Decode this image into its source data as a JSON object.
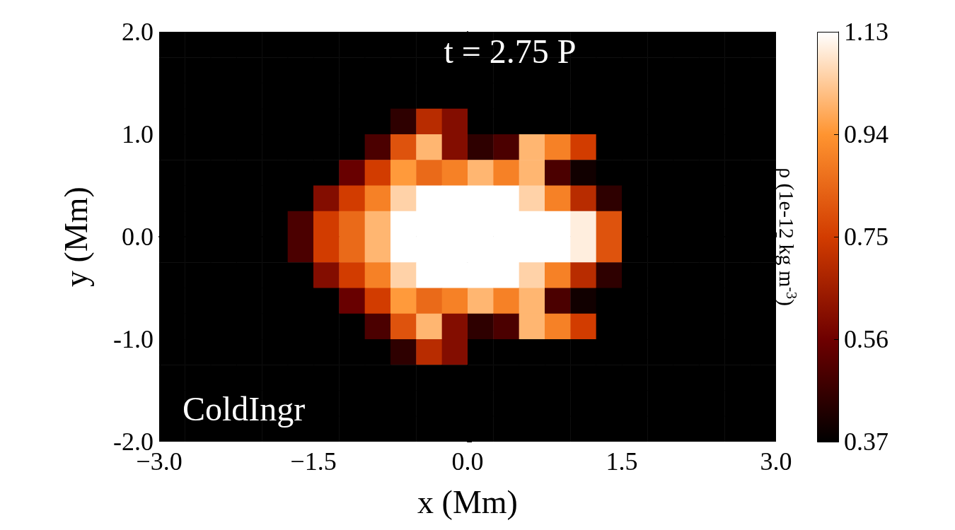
{
  "chart_data": {
    "type": "heatmap",
    "xlabel": "x (Mm)",
    "ylabel": "y (Mm)",
    "clabel": "ρ (1e-12 kg m$^{-3}$)",
    "annotations": [
      "t = 2.75 P",
      "ColdIngr"
    ],
    "x": [
      -2.875,
      -2.625,
      -2.375,
      -2.125,
      -1.875,
      -1.625,
      -1.375,
      -1.125,
      -0.875,
      -0.625,
      -0.375,
      -0.125,
      0.125,
      0.375,
      0.625,
      0.875,
      1.125,
      1.375,
      1.625,
      1.875,
      2.125,
      2.375,
      2.625,
      2.875
    ],
    "y": [
      1.875,
      1.625,
      1.375,
      1.125,
      0.875,
      0.625,
      0.375,
      0.125,
      -0.125,
      -0.375,
      -0.625,
      -0.875,
      -1.125,
      -1.375,
      -1.625,
      -1.875
    ],
    "xlim": [
      -3,
      3
    ],
    "ylim": [
      -2,
      2
    ],
    "xticks": [
      {
        "value": -3,
        "label": "−3.0"
      },
      {
        "value": -1.5,
        "label": "−1.5"
      },
      {
        "value": 0,
        "label": "0.0"
      },
      {
        "value": 1.5,
        "label": "1.5"
      },
      {
        "value": 3,
        "label": "3.0"
      }
    ],
    "yticks": [
      {
        "value": -2,
        "label": "-2.0"
      },
      {
        "value": -1,
        "label": "-1.0"
      },
      {
        "value": 0,
        "label": "0.0"
      },
      {
        "value": 1,
        "label": "1.0"
      },
      {
        "value": 2,
        "label": "2.0"
      }
    ],
    "clim": [
      0.37,
      1.13
    ],
    "cticks": [
      0.37,
      0.56,
      0.75,
      0.94,
      1.13
    ],
    "cells": [
      [
        0.37,
        0.37,
        0.37,
        0.37,
        0.37,
        0.37,
        0.37,
        0.37,
        0.37,
        0.37,
        0.37,
        0.37,
        0.37,
        0.37,
        0.37,
        0.37,
        0.37,
        0.37,
        0.37,
        0.37,
        0.37,
        0.37,
        0.37,
        0.37
      ],
      [
        0.37,
        0.37,
        0.37,
        0.37,
        0.37,
        0.37,
        0.37,
        0.37,
        0.37,
        0.37,
        0.37,
        0.37,
        0.37,
        0.37,
        0.37,
        0.37,
        0.37,
        0.37,
        0.37,
        0.37,
        0.37,
        0.37,
        0.37,
        0.37
      ],
      [
        0.37,
        0.37,
        0.37,
        0.37,
        0.37,
        0.37,
        0.37,
        0.37,
        0.37,
        0.37,
        0.37,
        0.37,
        0.37,
        0.37,
        0.37,
        0.37,
        0.37,
        0.37,
        0.37,
        0.37,
        0.37,
        0.37,
        0.37,
        0.37
      ],
      [
        0.37,
        0.37,
        0.37,
        0.37,
        0.37,
        0.37,
        0.37,
        0.37,
        0.37,
        0.45,
        0.7,
        0.6,
        0.37,
        0.37,
        0.37,
        0.37,
        0.37,
        0.37,
        0.37,
        0.37,
        0.37,
        0.37,
        0.37,
        0.37
      ],
      [
        0.37,
        0.37,
        0.37,
        0.37,
        0.37,
        0.37,
        0.37,
        0.37,
        0.5,
        0.8,
        1.0,
        0.6,
        0.45,
        0.5,
        1.0,
        0.9,
        0.75,
        0.37,
        0.37,
        0.37,
        0.37,
        0.37,
        0.37,
        0.37
      ],
      [
        0.37,
        0.37,
        0.37,
        0.37,
        0.37,
        0.37,
        0.37,
        0.55,
        0.75,
        0.95,
        0.85,
        0.9,
        1.0,
        0.9,
        1.0,
        0.5,
        0.4,
        0.37,
        0.37,
        0.37,
        0.37,
        0.37,
        0.37,
        0.37
      ],
      [
        0.37,
        0.37,
        0.37,
        0.37,
        0.37,
        0.37,
        0.6,
        0.75,
        0.9,
        1.05,
        1.13,
        1.13,
        1.13,
        1.13,
        1.05,
        0.9,
        0.7,
        0.45,
        0.37,
        0.37,
        0.37,
        0.37,
        0.37,
        0.37
      ],
      [
        0.37,
        0.37,
        0.37,
        0.37,
        0.37,
        0.5,
        0.75,
        0.85,
        1.0,
        1.13,
        1.13,
        1.13,
        1.13,
        1.13,
        1.13,
        1.13,
        1.1,
        0.8,
        0.37,
        0.37,
        0.37,
        0.37,
        0.37,
        0.37
      ],
      [
        0.37,
        0.37,
        0.37,
        0.37,
        0.37,
        0.5,
        0.75,
        0.85,
        1.0,
        1.13,
        1.13,
        1.13,
        1.13,
        1.13,
        1.13,
        1.13,
        1.1,
        0.8,
        0.37,
        0.37,
        0.37,
        0.37,
        0.37,
        0.37
      ],
      [
        0.37,
        0.37,
        0.37,
        0.37,
        0.37,
        0.37,
        0.6,
        0.75,
        0.9,
        1.05,
        1.13,
        1.13,
        1.13,
        1.13,
        1.05,
        0.9,
        0.7,
        0.45,
        0.37,
        0.37,
        0.37,
        0.37,
        0.37,
        0.37
      ],
      [
        0.37,
        0.37,
        0.37,
        0.37,
        0.37,
        0.37,
        0.37,
        0.55,
        0.75,
        0.95,
        0.85,
        0.9,
        1.0,
        0.9,
        1.0,
        0.5,
        0.4,
        0.37,
        0.37,
        0.37,
        0.37,
        0.37,
        0.37,
        0.37
      ],
      [
        0.37,
        0.37,
        0.37,
        0.37,
        0.37,
        0.37,
        0.37,
        0.37,
        0.5,
        0.8,
        1.0,
        0.6,
        0.45,
        0.5,
        1.0,
        0.9,
        0.75,
        0.37,
        0.37,
        0.37,
        0.37,
        0.37,
        0.37,
        0.37
      ],
      [
        0.37,
        0.37,
        0.37,
        0.37,
        0.37,
        0.37,
        0.37,
        0.37,
        0.37,
        0.45,
        0.7,
        0.6,
        0.37,
        0.37,
        0.37,
        0.37,
        0.37,
        0.37,
        0.37,
        0.37,
        0.37,
        0.37,
        0.37,
        0.37
      ],
      [
        0.37,
        0.37,
        0.37,
        0.37,
        0.37,
        0.37,
        0.37,
        0.37,
        0.37,
        0.37,
        0.37,
        0.37,
        0.37,
        0.37,
        0.37,
        0.37,
        0.37,
        0.37,
        0.37,
        0.37,
        0.37,
        0.37,
        0.37,
        0.37
      ],
      [
        0.37,
        0.37,
        0.37,
        0.37,
        0.37,
        0.37,
        0.37,
        0.37,
        0.37,
        0.37,
        0.37,
        0.37,
        0.37,
        0.37,
        0.37,
        0.37,
        0.37,
        0.37,
        0.37,
        0.37,
        0.37,
        0.37,
        0.37,
        0.37
      ],
      [
        0.37,
        0.37,
        0.37,
        0.37,
        0.37,
        0.37,
        0.37,
        0.37,
        0.37,
        0.37,
        0.37,
        0.37,
        0.37,
        0.37,
        0.37,
        0.37,
        0.37,
        0.37,
        0.37,
        0.37,
        0.37,
        0.37,
        0.37,
        0.37
      ]
    ]
  }
}
